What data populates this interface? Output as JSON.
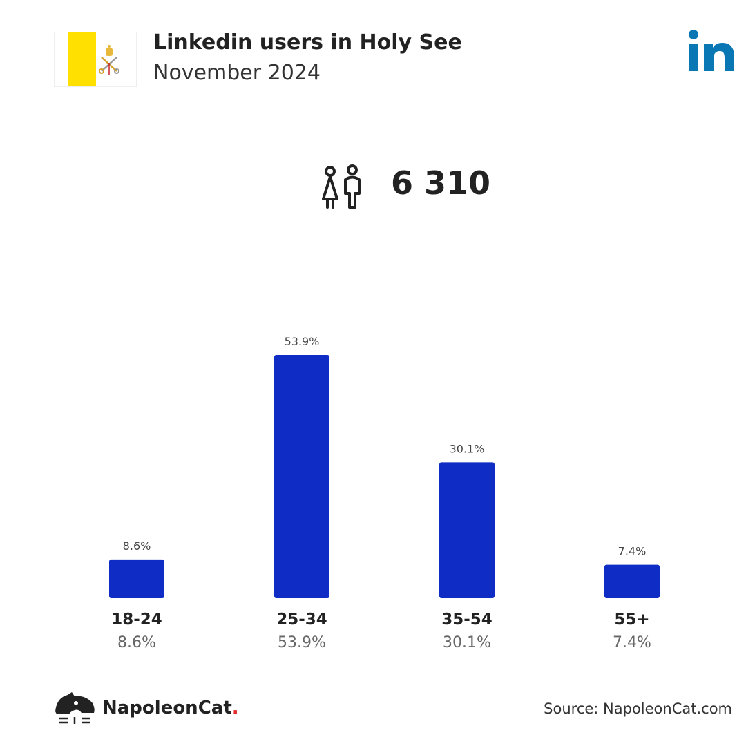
{
  "header": {
    "title": "Linkedin users in Holy See",
    "subtitle": "November 2024"
  },
  "total": {
    "value": "6 310",
    "icon": "users-icon"
  },
  "colors": {
    "bar": "#0f2cc4",
    "linkedin": "#0a77b5",
    "flag_yellow": "#ffe000"
  },
  "chart_data": {
    "type": "bar",
    "categories": [
      "18-24",
      "25-34",
      "35-54",
      "55+"
    ],
    "values": [
      8.6,
      53.9,
      30.1,
      7.4
    ],
    "value_labels": [
      "8.6%",
      "53.9%",
      "30.1%",
      "7.4%"
    ],
    "title": "",
    "xlabel": "",
    "ylabel": "",
    "ylim": [
      0,
      53.9
    ],
    "grid": false
  },
  "footer": {
    "brand": "NapoleonCat",
    "brand_dot": ".",
    "source": "Source: NapoleonCat.com"
  }
}
